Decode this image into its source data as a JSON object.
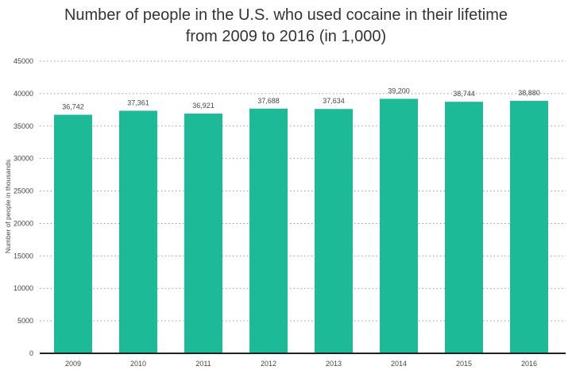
{
  "chart_data": {
    "type": "bar",
    "title": [
      "Number of people in the U.S. who used cocaine in their lifetime",
      "from 2009 to 2016 (in 1,000)"
    ],
    "xlabel": "",
    "ylabel": "Number of people in thousands",
    "categories": [
      "2009",
      "2010",
      "2011",
      "2012",
      "2013",
      "2014",
      "2015",
      "2016"
    ],
    "values": [
      36742,
      37361,
      36921,
      37688,
      37634,
      39200,
      38744,
      38880
    ],
    "data_labels": [
      "36,742",
      "37,361",
      "36,921",
      "37,688",
      "37,634",
      "39,200",
      "38,744",
      "38,880"
    ],
    "ylim": [
      0,
      45000
    ],
    "yticks": [
      0,
      5000,
      10000,
      15000,
      20000,
      25000,
      30000,
      35000,
      40000,
      45000
    ],
    "grid": true,
    "bar_color": "#1dba98"
  }
}
